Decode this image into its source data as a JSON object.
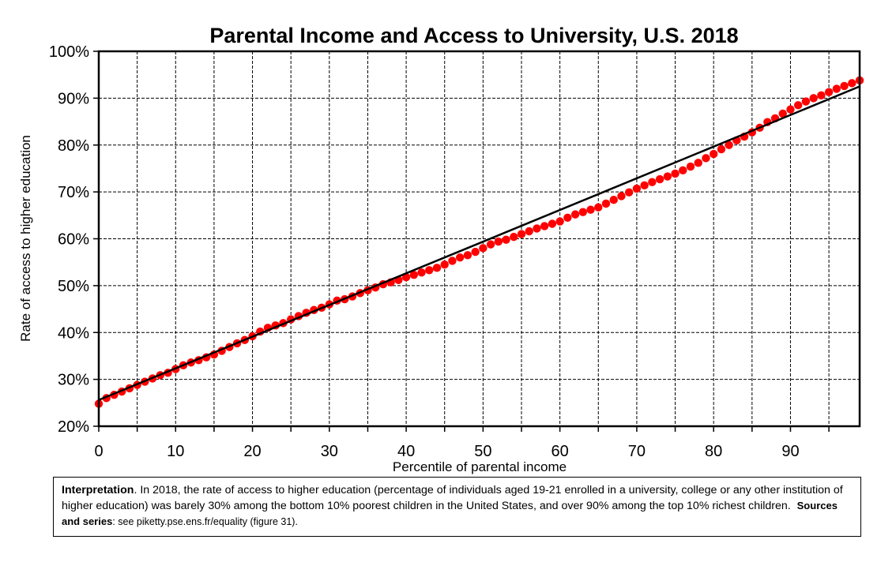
{
  "chart_data": {
    "type": "scatter",
    "title": "Parental Income and Access to University, U.S. 2018",
    "xlabel": "Percentile of parental income",
    "ylabel": "Rate of access to higher education",
    "xlim": [
      0,
      99
    ],
    "ylim": [
      0.2,
      1.0
    ],
    "x_ticks": [
      0,
      10,
      20,
      30,
      40,
      50,
      60,
      70,
      80,
      90
    ],
    "x_tick_labels": [
      "0",
      "10",
      "20",
      "30",
      "40",
      "50",
      "60",
      "70",
      "80",
      "90"
    ],
    "y_ticks": [
      0.2,
      0.3,
      0.4,
      0.5,
      0.6,
      0.7,
      0.8,
      0.9,
      1.0
    ],
    "y_tick_labels": [
      "20%",
      "30%",
      "40%",
      "50%",
      "60%",
      "70%",
      "80%",
      "90%",
      "100%"
    ],
    "grid": true,
    "series": [
      {
        "type": "scatter",
        "color": "#ff0000",
        "x": [
          0,
          1,
          2,
          3,
          4,
          5,
          6,
          7,
          8,
          9,
          10,
          11,
          12,
          13,
          14,
          15,
          16,
          17,
          18,
          19,
          20,
          21,
          22,
          23,
          24,
          25,
          26,
          27,
          28,
          29,
          30,
          31,
          32,
          33,
          34,
          35,
          36,
          37,
          38,
          39,
          40,
          41,
          42,
          43,
          44,
          45,
          46,
          47,
          48,
          49,
          50,
          51,
          52,
          53,
          54,
          55,
          56,
          57,
          58,
          59,
          60,
          61,
          62,
          63,
          64,
          65,
          66,
          67,
          68,
          69,
          70,
          71,
          72,
          73,
          74,
          75,
          76,
          77,
          78,
          79,
          80,
          81,
          82,
          83,
          84,
          85,
          86,
          87,
          88,
          89,
          90,
          91,
          92,
          93,
          94,
          95,
          96,
          97,
          98,
          99
        ],
        "y": [
          0.248,
          0.26,
          0.267,
          0.274,
          0.281,
          0.288,
          0.295,
          0.302,
          0.309,
          0.314,
          0.322,
          0.33,
          0.336,
          0.341,
          0.347,
          0.353,
          0.361,
          0.369,
          0.377,
          0.384,
          0.392,
          0.402,
          0.41,
          0.415,
          0.42,
          0.428,
          0.435,
          0.442,
          0.448,
          0.453,
          0.46,
          0.468,
          0.471,
          0.477,
          0.484,
          0.49,
          0.496,
          0.503,
          0.507,
          0.512,
          0.518,
          0.523,
          0.528,
          0.533,
          0.538,
          0.545,
          0.553,
          0.56,
          0.565,
          0.572,
          0.58,
          0.588,
          0.594,
          0.598,
          0.604,
          0.61,
          0.616,
          0.622,
          0.627,
          0.632,
          0.637,
          0.645,
          0.652,
          0.657,
          0.662,
          0.667,
          0.675,
          0.683,
          0.691,
          0.699,
          0.707,
          0.714,
          0.721,
          0.727,
          0.733,
          0.739,
          0.746,
          0.754,
          0.762,
          0.772,
          0.781,
          0.791,
          0.8,
          0.81,
          0.818,
          0.827,
          0.837,
          0.849,
          0.857,
          0.867,
          0.876,
          0.885,
          0.893,
          0.9,
          0.906,
          0.913,
          0.92,
          0.926,
          0.932,
          0.938
        ]
      },
      {
        "type": "line",
        "color": "#000000",
        "x": [
          0,
          99
        ],
        "y": [
          0.256,
          0.925
        ]
      }
    ]
  },
  "note": {
    "interpretation_label": "Interpretation",
    "interpretation_text": ". In 2018, the rate of access to higher education (percentage of individuals aged 19-21 enrolled in a university, college or any other institution of higher education) was barely 30% among the bottom 10% poorest children in the United States, and over 90% among the top 10% richest children.",
    "sources_label": "Sources and series",
    "sources_text": ": see piketty.pse.ens.fr/equality (figure 31)."
  }
}
